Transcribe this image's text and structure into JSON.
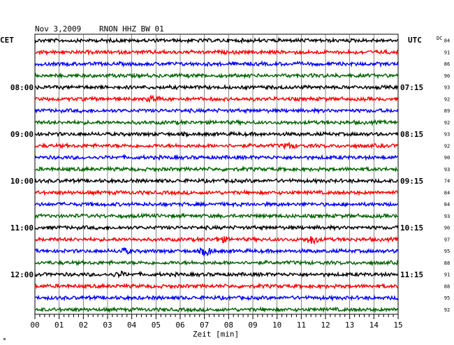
{
  "header": {
    "date": "Nov 3,2009",
    "station": "RNON HHZ BW 01"
  },
  "left_timezone": "CET",
  "right_timezone": "UTC",
  "dc_label": "DC",
  "footer_mark": "×",
  "chart_data": {
    "type": "line",
    "title": "Nov 3,2009   RNON HHZ BW 01",
    "xlabel": "Zeit [min]",
    "xlim": [
      0,
      15
    ],
    "x_ticks": [
      "00",
      "01",
      "02",
      "03",
      "04",
      "05",
      "06",
      "07",
      "08",
      "09",
      "10",
      "11",
      "12",
      "13",
      "14",
      "15"
    ],
    "left_time_labels": [
      {
        "row": 4,
        "text": "08:00"
      },
      {
        "row": 8,
        "text": "09:00"
      },
      {
        "row": 12,
        "text": "10:00"
      },
      {
        "row": 16,
        "text": "11:00"
      },
      {
        "row": 20,
        "text": "12:00"
      }
    ],
    "right_time_labels": [
      {
        "row": 4,
        "text": "07:15"
      },
      {
        "row": 8,
        "text": "08:15"
      },
      {
        "row": 12,
        "text": "09:15"
      },
      {
        "row": 16,
        "text": "10:15"
      },
      {
        "row": 20,
        "text": "11:15"
      }
    ],
    "trace_colors": [
      "#000000",
      "#ff0000",
      "#0000ff",
      "#006400"
    ],
    "dc_values": [
      "84",
      "91",
      "86",
      "90",
      "93",
      "92",
      "89",
      "92",
      "93",
      "92",
      "90",
      "93",
      "74",
      "84",
      "84",
      "93",
      "90",
      "97",
      "95",
      "88",
      "91",
      "88",
      "95",
      "92"
    ],
    "events": [
      {
        "row": 5,
        "minute": 4.9,
        "amplitude": 2.2
      },
      {
        "row": 9,
        "minute": 10.5,
        "amplitude": 1.6
      },
      {
        "row": 17,
        "minute": 7.7,
        "amplitude": 1.6
      },
      {
        "row": 17,
        "minute": 11.45,
        "amplitude": 2.8
      },
      {
        "row": 18,
        "minute": 3.7,
        "amplitude": 1.6
      },
      {
        "row": 18,
        "minute": 7.1,
        "amplitude": 2.8
      },
      {
        "row": 20,
        "minute": 3.5,
        "amplitude": 1.4
      }
    ]
  }
}
